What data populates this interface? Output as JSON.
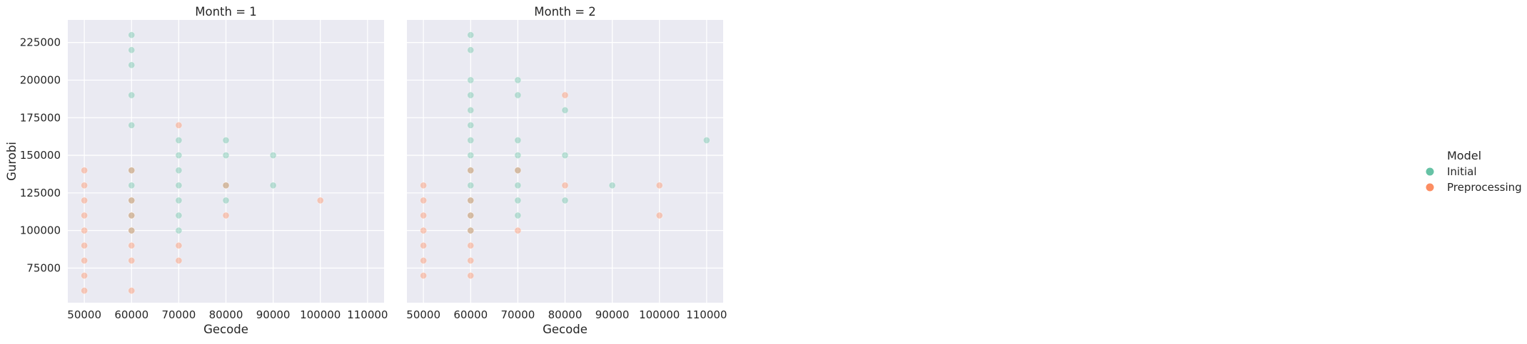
{
  "chart_data": {
    "type": "scatter",
    "xlabel": "Gecode",
    "ylabel": "Gurobi",
    "x_ticks": [
      50000,
      60000,
      70000,
      80000,
      90000,
      100000,
      110000
    ],
    "y_ticks": [
      75000,
      100000,
      125000,
      150000,
      175000,
      200000,
      225000
    ],
    "xlim": [
      46500,
      113500
    ],
    "ylim": [
      52000,
      240000
    ],
    "grid": true,
    "legend": {
      "title": "Model",
      "position": "right",
      "entries": [
        {
          "name": "Initial",
          "color": "#66c2a5"
        },
        {
          "name": "Preprocessing",
          "color": "#fc8d62"
        }
      ]
    },
    "panels": [
      {
        "title": "Month = 1",
        "series": [
          {
            "name": "Initial",
            "points": [
              [
                60000,
                230000
              ],
              [
                60000,
                220000
              ],
              [
                60000,
                210000
              ],
              [
                60000,
                190000
              ],
              [
                60000,
                170000
              ],
              [
                60000,
                140000
              ],
              [
                60000,
                130000
              ],
              [
                60000,
                120000
              ],
              [
                60000,
                110000
              ],
              [
                60000,
                100000
              ],
              [
                70000,
                160000
              ],
              [
                70000,
                150000
              ],
              [
                70000,
                140000
              ],
              [
                70000,
                130000
              ],
              [
                70000,
                120000
              ],
              [
                70000,
                110000
              ],
              [
                70000,
                100000
              ],
              [
                80000,
                160000
              ],
              [
                80000,
                150000
              ],
              [
                80000,
                130000
              ],
              [
                80000,
                120000
              ],
              [
                90000,
                150000
              ],
              [
                90000,
                130000
              ]
            ]
          },
          {
            "name": "Preprocessing",
            "points": [
              [
                50000,
                140000
              ],
              [
                50000,
                130000
              ],
              [
                50000,
                120000
              ],
              [
                50000,
                110000
              ],
              [
                50000,
                100000
              ],
              [
                50000,
                90000
              ],
              [
                50000,
                80000
              ],
              [
                50000,
                70000
              ],
              [
                50000,
                60000
              ],
              [
                60000,
                140000
              ],
              [
                60000,
                120000
              ],
              [
                60000,
                110000
              ],
              [
                60000,
                100000
              ],
              [
                60000,
                90000
              ],
              [
                60000,
                80000
              ],
              [
                60000,
                60000
              ],
              [
                70000,
                170000
              ],
              [
                70000,
                90000
              ],
              [
                70000,
                80000
              ],
              [
                80000,
                130000
              ],
              [
                80000,
                110000
              ],
              [
                100000,
                120000
              ]
            ]
          }
        ]
      },
      {
        "title": "Month = 2",
        "series": [
          {
            "name": "Initial",
            "points": [
              [
                60000,
                230000
              ],
              [
                60000,
                220000
              ],
              [
                60000,
                200000
              ],
              [
                60000,
                190000
              ],
              [
                60000,
                180000
              ],
              [
                60000,
                170000
              ],
              [
                60000,
                160000
              ],
              [
                60000,
                150000
              ],
              [
                60000,
                140000
              ],
              [
                60000,
                130000
              ],
              [
                60000,
                120000
              ],
              [
                60000,
                110000
              ],
              [
                60000,
                100000
              ],
              [
                70000,
                200000
              ],
              [
                70000,
                190000
              ],
              [
                70000,
                160000
              ],
              [
                70000,
                150000
              ],
              [
                70000,
                140000
              ],
              [
                70000,
                130000
              ],
              [
                70000,
                120000
              ],
              [
                70000,
                110000
              ],
              [
                80000,
                180000
              ],
              [
                80000,
                150000
              ],
              [
                80000,
                120000
              ],
              [
                90000,
                130000
              ],
              [
                110000,
                160000
              ]
            ]
          },
          {
            "name": "Preprocessing",
            "points": [
              [
                50000,
                130000
              ],
              [
                50000,
                120000
              ],
              [
                50000,
                110000
              ],
              [
                50000,
                100000
              ],
              [
                50000,
                90000
              ],
              [
                50000,
                80000
              ],
              [
                50000,
                70000
              ],
              [
                60000,
                140000
              ],
              [
                60000,
                120000
              ],
              [
                60000,
                110000
              ],
              [
                60000,
                100000
              ],
              [
                60000,
                90000
              ],
              [
                60000,
                80000
              ],
              [
                60000,
                70000
              ],
              [
                70000,
                140000
              ],
              [
                70000,
                100000
              ],
              [
                80000,
                190000
              ],
              [
                80000,
                130000
              ],
              [
                100000,
                130000
              ],
              [
                100000,
                110000
              ]
            ]
          }
        ]
      }
    ]
  }
}
